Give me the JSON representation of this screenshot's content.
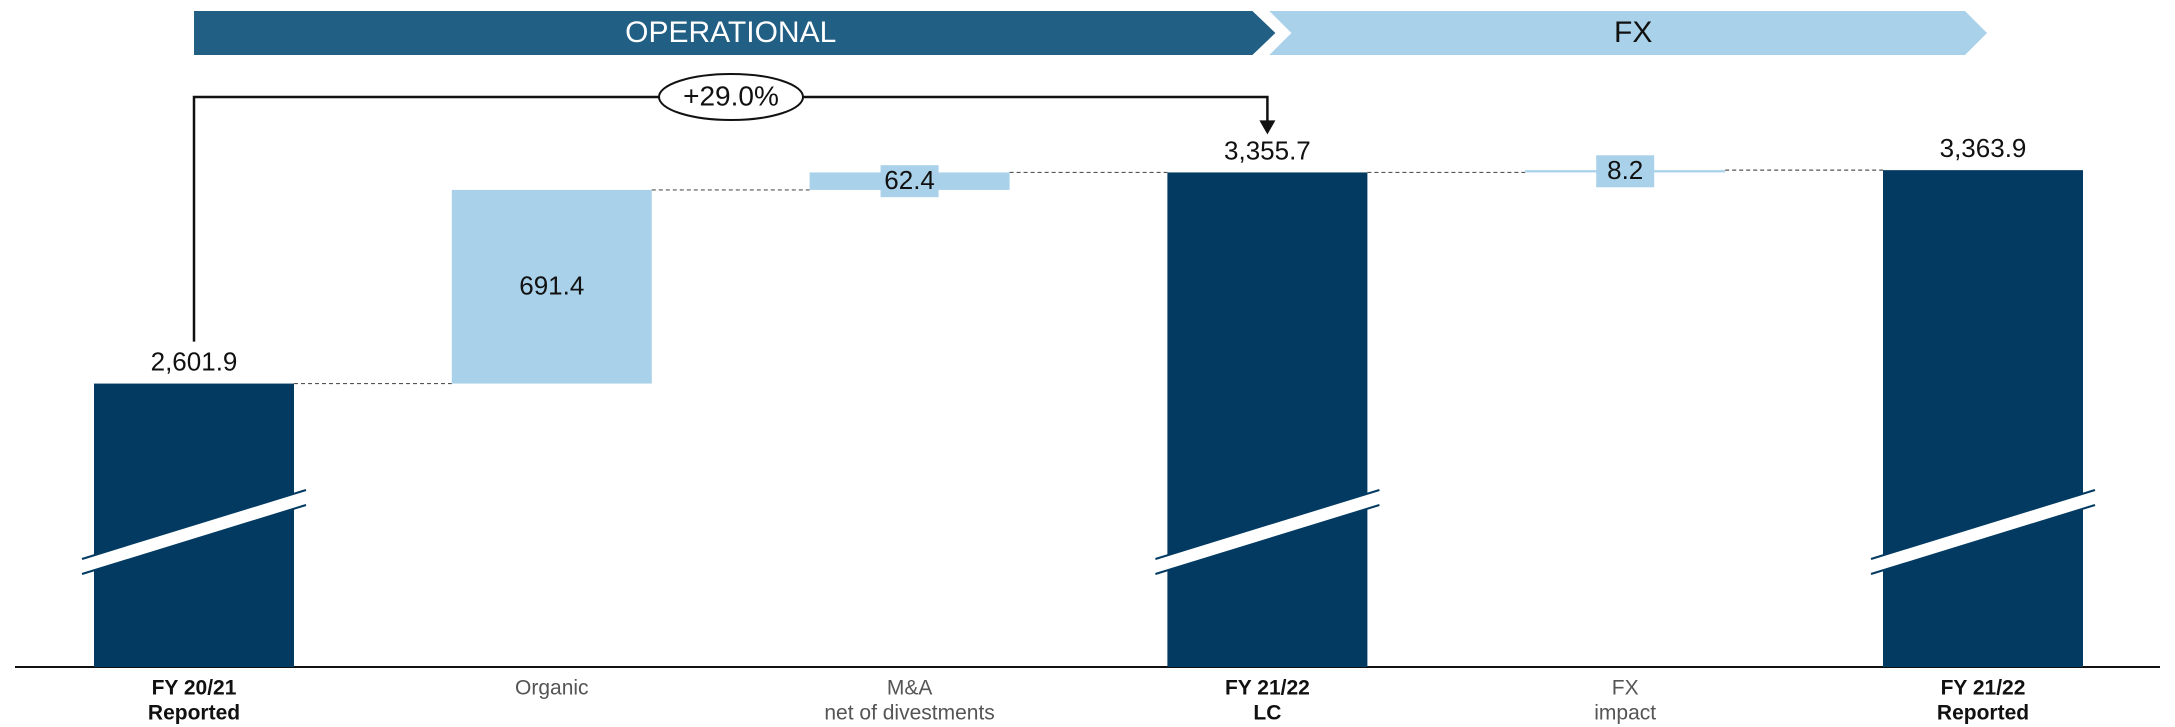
{
  "chart_data": {
    "type": "waterfall",
    "phases": [
      "OPERATIONAL",
      "FX"
    ],
    "annotation": "+29.0%",
    "categories": [
      [
        "FY 20/21",
        "Reported"
      ],
      [
        "Organic"
      ],
      [
        "M&A",
        "net of divestments"
      ],
      [
        "FY 21/22",
        "LC"
      ],
      [
        "FX",
        "impact"
      ],
      [
        "FY 21/22",
        "Reported"
      ]
    ],
    "kinds": [
      "total",
      "delta",
      "delta",
      "total",
      "delta",
      "total"
    ],
    "values": [
      2601.9,
      691.4,
      62.4,
      3355.7,
      8.2,
      3363.9
    ],
    "value_labels": [
      "2,601.9",
      "691.4",
      "62.4",
      "3,355.7",
      "8.2",
      "3,363.9"
    ],
    "colors": {
      "total": "#023a62",
      "delta": "#a9d2ea",
      "operational": "#215f84",
      "fx": "#a9d2ea"
    },
    "ylim": [
      1590,
      3700
    ],
    "axis_break": true
  }
}
